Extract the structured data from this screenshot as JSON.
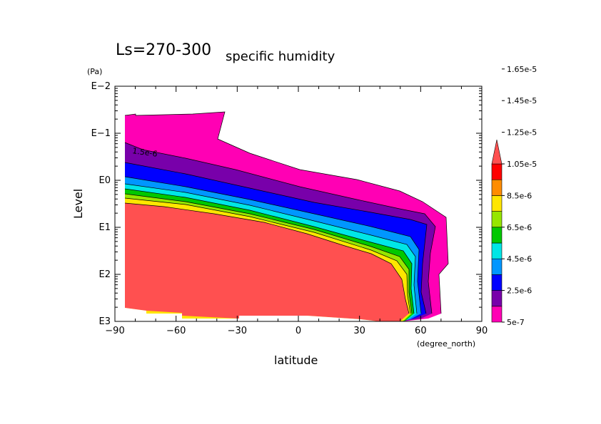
{
  "title": {
    "main": "Ls=270-300",
    "sub": "specific humidity"
  },
  "chart_data": {
    "type": "contour",
    "xlabel": "latitude",
    "xunit": "(degree_north)",
    "ylabel": "Level",
    "yunit": "(Pa)",
    "xlim": [
      -90,
      90
    ],
    "ylim_log10": [
      -2,
      3
    ],
    "y_scale": "log",
    "x_ticks": [
      "−90",
      "−60",
      "−30",
      "0",
      "30",
      "60",
      "90"
    ],
    "y_ticks": [
      "E3",
      "E2",
      "E1",
      "E0",
      "E−1",
      "E−2"
    ],
    "colorbar": {
      "levels": [
        "5e-7",
        "2.5e-6",
        "4.5e-6",
        "6.5e-6",
        "8.5e-6",
        "1.05e-5",
        "1.25e-5",
        "1.45e-5",
        "1.65e-5"
      ],
      "colors": [
        "#ff00b4",
        "#7800aa",
        "#0000ff",
        "#0096ff",
        "#00e6e6",
        "#00c800",
        "#96e600",
        "#ffe600",
        "#ff8c00",
        "#ff0000",
        "#ff5050"
      ],
      "extend": "max"
    },
    "contour_labels": [
      "1.5e-6"
    ]
  }
}
